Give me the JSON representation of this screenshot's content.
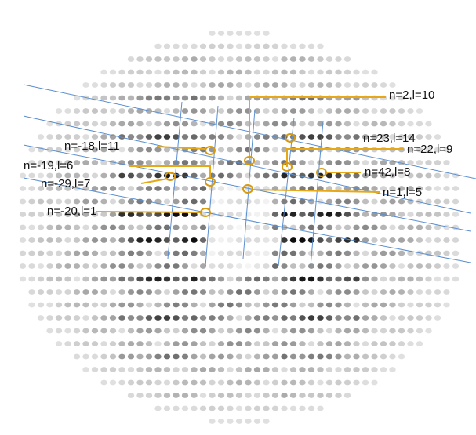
{
  "labels": [
    "n=2,l=10",
    "n=23,l=14",
    "n=22,l=9",
    "n=-18,l=11",
    "n=-19,l=6",
    "n=42,l=8",
    "n=-29,l=7",
    "n=1,l=5",
    "n=-20,l=1"
  ]
}
